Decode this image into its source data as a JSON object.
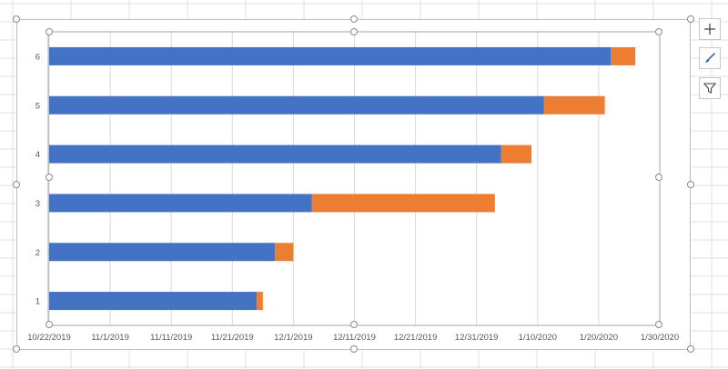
{
  "chart_data": {
    "type": "bar",
    "orientation": "horizontal",
    "stacked": true,
    "categories": [
      "1",
      "2",
      "3",
      "4",
      "5",
      "6"
    ],
    "series": [
      {
        "color": "#4472C4",
        "values": [
          "2019-11-25",
          "2019-11-28",
          "2019-12-04",
          "2020-01-04",
          "2020-01-11",
          "2020-01-22"
        ]
      },
      {
        "color": "#ED7D31",
        "values": [
          1,
          3,
          30,
          5,
          10,
          4
        ]
      }
    ],
    "x_axis": {
      "type": "date",
      "min": "2019-10-22",
      "max": "2020-01-30",
      "ticks": [
        "10/22/2019",
        "11/1/2019",
        "11/11/2019",
        "11/21/2019",
        "12/1/2019",
        "12/11/2019",
        "12/21/2019",
        "12/31/2019",
        "1/10/2020",
        "1/20/2020",
        "1/30/2020"
      ]
    },
    "y_axis": {
      "labels": [
        "1",
        "2",
        "3",
        "4",
        "5",
        "6"
      ]
    },
    "series_1_start_date": "2019-10-22",
    "grid": "vertical",
    "legend": "none",
    "title": "",
    "xlabel": "",
    "ylabel": ""
  },
  "toolbar": {
    "icons": [
      "plus-icon",
      "brush-icon",
      "filter-icon"
    ]
  }
}
